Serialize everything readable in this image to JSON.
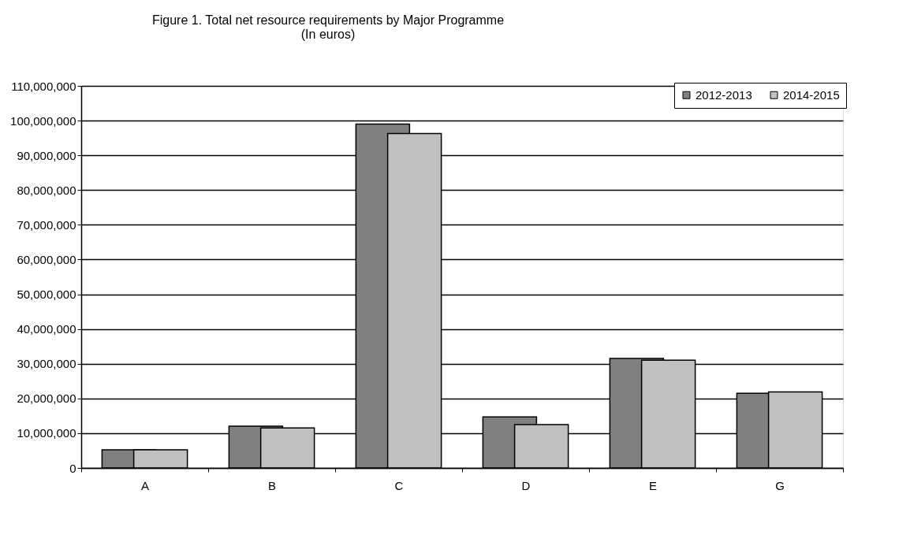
{
  "chart_data": {
    "type": "bar",
    "title": "Figure 1.  Total net resource requirements by Major Programme",
    "subtitle": "(In euros)",
    "categories": [
      "A",
      "B",
      "C",
      "D",
      "E",
      "G"
    ],
    "series": [
      {
        "name": "2012-2013",
        "color": "#808080",
        "values": [
          5200000,
          12000000,
          99000000,
          14700000,
          31500000,
          21500000
        ]
      },
      {
        "name": "2014-2015",
        "color": "#c0c0c0",
        "values": [
          5200000,
          11500000,
          96300000,
          12500000,
          31000000,
          21900000
        ]
      }
    ],
    "ylim": [
      0,
      110000000
    ],
    "yticks": [
      0,
      {
        "value": 10000000,
        "label": "10,000,000"
      },
      {
        "value": 20000000,
        "label": "20,000,000"
      },
      {
        "value": 30000000,
        "label": "30,000,000"
      },
      {
        "value": 40000000,
        "label": "40,000,000"
      },
      {
        "value": 50000000,
        "label": "50,000,000"
      },
      {
        "value": 60000000,
        "label": "60,000,000"
      },
      {
        "value": 70000000,
        "label": "70,000,000"
      },
      {
        "value": 80000000,
        "label": "80,000,000"
      },
      {
        "value": 90000000,
        "label": "90,000,000"
      },
      {
        "value": 100000000,
        "label": "100,000,000"
      },
      {
        "value": 110000000,
        "label": "110,000,000"
      }
    ],
    "grid": "y",
    "legend": "top right"
  }
}
